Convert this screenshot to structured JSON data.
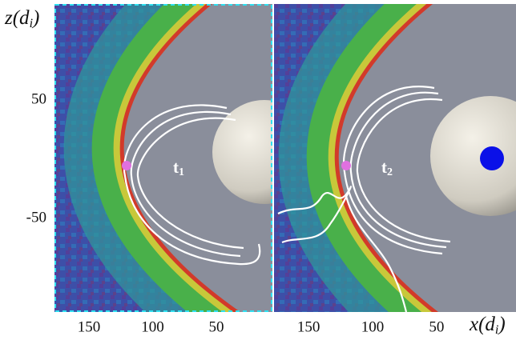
{
  "chart_data": [
    {
      "type": "field",
      "label": "t",
      "label_sub": "1",
      "xlim": [
        177,
        6
      ],
      "ylim": [
        -129,
        131
      ],
      "xticks": [
        150,
        100,
        50
      ],
      "yticks": [
        50,
        -50
      ],
      "y_label": "z(d",
      "y_label_sub": "i",
      "y_label_close": ")"
    },
    {
      "type": "field",
      "label": "t",
      "label_sub": "2",
      "xlim": [
        177,
        -12
      ],
      "ylim": [
        -129,
        131
      ],
      "xticks": [
        150,
        100,
        50
      ],
      "x_label": "x(d",
      "x_label_sub": "i",
      "x_label_close": ")"
    }
  ]
}
